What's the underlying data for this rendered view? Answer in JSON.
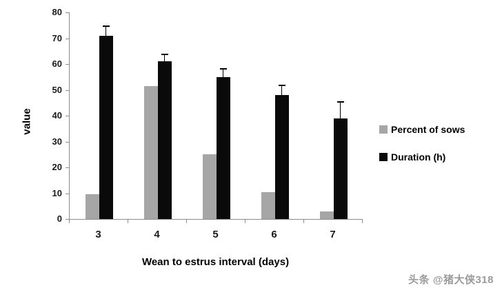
{
  "chart_data": {
    "type": "bar",
    "categories": [
      "3",
      "4",
      "5",
      "6",
      "7"
    ],
    "series": [
      {
        "name": "Percent of sows",
        "color": "#a6a6a6",
        "values": [
          9.5,
          51.5,
          25,
          10.5,
          3
        ],
        "errors": [
          0,
          0,
          0,
          0,
          0
        ]
      },
      {
        "name": "Duration (h)",
        "color": "#0a0a0a",
        "values": [
          71,
          61,
          55,
          48,
          39
        ],
        "errors": [
          3.5,
          2.5,
          3,
          3.5,
          6
        ]
      }
    ],
    "title": "",
    "xlabel": "Wean to estrus interval (days)",
    "ylabel": "value",
    "ylim": [
      0,
      80
    ],
    "ytick_step": 10,
    "grid": false,
    "legend_position": "right",
    "error_bars": "upper"
  },
  "legend": {
    "items": [
      {
        "label": "Percent of sows",
        "color": "#a6a6a6"
      },
      {
        "label": "Duration (h)",
        "color": "#0a0a0a"
      }
    ]
  },
  "watermark": "头条 @猪大侠318"
}
